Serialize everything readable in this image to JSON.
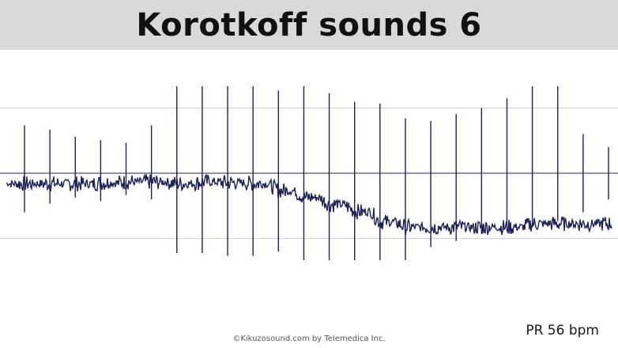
{
  "header": {
    "title": "Korotkoff sounds 6"
  },
  "footer": {
    "rate_label": "PR 56 bpm",
    "copyright": "©Kikuzosound.com by Telemedica Inc."
  },
  "colors": {
    "waveform": "#1f2158",
    "gridline": "#cfcfcf",
    "baseline": "#23264d",
    "title_bar": "#d9d9d9"
  },
  "chart_data": {
    "type": "line",
    "title": "Korotkoff sounds 6",
    "xlabel": "",
    "ylabel": "",
    "ylim": [
      -1,
      1
    ],
    "grid": true,
    "gridlines_y": [
      0.75,
      -0.75
    ],
    "baseline_y": 0,
    "rate": "PR 56 bpm",
    "series": [
      {
        "values": [
          {
            "offset": -0.12,
            "up": 0.55,
            "down": -0.45
          },
          {
            "offset": -0.12,
            "up": 0.5,
            "down": -0.35
          },
          {
            "offset": -0.12,
            "up": 0.42,
            "down": -0.28
          },
          {
            "offset": -0.11,
            "up": 0.38,
            "down": -0.32
          },
          {
            "offset": -0.1,
            "up": 0.35,
            "down": -0.25
          },
          {
            "offset": -0.1,
            "up": 0.55,
            "down": -0.3
          },
          {
            "offset": -0.12,
            "up": 1.0,
            "down": -0.92
          },
          {
            "offset": -0.1,
            "up": 1.0,
            "down": -0.92
          },
          {
            "offset": -0.11,
            "up": 1.0,
            "down": -0.95
          },
          {
            "offset": -0.12,
            "up": 1.0,
            "down": -0.95
          },
          {
            "offset": -0.2,
            "up": 0.95,
            "down": -0.9
          },
          {
            "offset": -0.28,
            "up": 1.0,
            "down": -1.0
          },
          {
            "offset": -0.36,
            "up": 0.92,
            "down": -1.0
          },
          {
            "offset": -0.44,
            "up": 0.82,
            "down": -1.0
          },
          {
            "offset": -0.56,
            "up": 0.8,
            "down": -1.0
          },
          {
            "offset": -0.62,
            "up": 0.63,
            "down": -1.0
          },
          {
            "offset": -0.62,
            "up": 0.6,
            "down": -0.85
          },
          {
            "offset": -0.62,
            "up": 0.68,
            "down": -0.78
          },
          {
            "offset": -0.62,
            "up": 0.75,
            "down": -0.7
          },
          {
            "offset": -0.62,
            "up": 0.86,
            "down": -0.66
          },
          {
            "offset": -0.58,
            "up": 1.0,
            "down": -0.62
          },
          {
            "offset": -0.58,
            "up": 1.0,
            "down": -0.55
          },
          {
            "offset": -0.58,
            "up": 0.45,
            "down": -0.45
          },
          {
            "offset": -0.58,
            "up": 0.3,
            "down": -0.3
          }
        ]
      }
    ]
  }
}
